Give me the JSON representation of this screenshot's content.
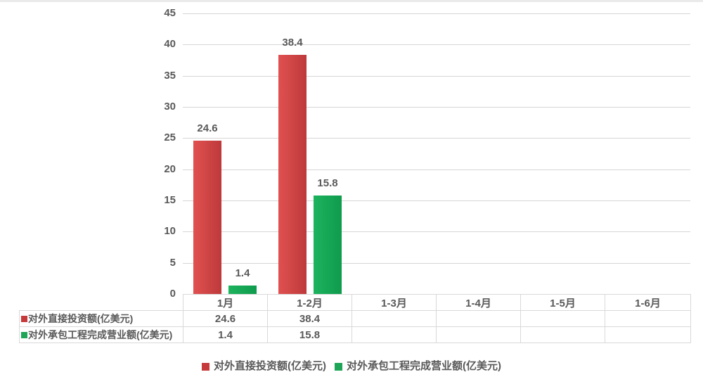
{
  "chart_data": {
    "type": "bar",
    "title": "",
    "xlabel": "",
    "ylabel": "",
    "categories": [
      "1月",
      "1-2月",
      "1-3月",
      "1-4月",
      "1-5月",
      "1-6月"
    ],
    "series": [
      {
        "name": "对外直接投资额(亿美元)",
        "values": [
          24.6,
          38.4,
          null,
          null,
          null,
          null
        ],
        "color": "#c63a3b",
        "bar_gradient": [
          "#e05150",
          "#be393b"
        ]
      },
      {
        "name": "对外承包工程完成营业额(亿美元)",
        "values": [
          1.4,
          15.8,
          null,
          null,
          null,
          null
        ],
        "color": "#1ea558",
        "bar_gradient": [
          "#1db35e",
          "#0f9b4d"
        ]
      }
    ],
    "ylim": [
      0,
      45
    ],
    "ytick_step": 5,
    "yticks": [
      0,
      5,
      10,
      15,
      20,
      25,
      30,
      35,
      40,
      45
    ],
    "grid": true,
    "value_labels": true,
    "show_data_table": true,
    "legend_position": "bottom"
  },
  "colors": {
    "text": "#595959",
    "gridline": "#d6d6d6",
    "table_border": "#d9d9d9",
    "background": "#ffffff"
  }
}
